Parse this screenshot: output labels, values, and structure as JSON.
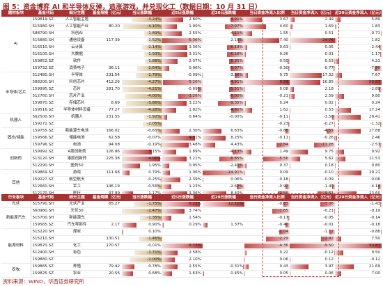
{
  "title": "图 5：资金博弈 AI 和半导体反弹，追涨游戏，并兑现化工（数据日期：10 月 31 日）",
  "footer": "资料来源：WIND，华西证券研究所",
  "headers": {
    "sector": "题材板块",
    "code": "基金代码",
    "sub": "细分主题",
    "size": "基金规模（亿元）",
    "d1": "当日涨跌幅",
    "w1": "近5日涨跌幅",
    "m1": "近20日涨跌幅",
    "flow_pct": "当日资金净流入比例",
    "flow_amt": "当日资金净流入（亿元）",
    "flow20": "近20日资金净流入（亿元）"
  },
  "headers2": {
    "sector": "行业板块",
    "code": "基金代码",
    "sub": "细分主题",
    "size": "基金规模（亿元）",
    "d1": "当日涨跌幅",
    "w1": "近5日涨跌幅",
    "m1": "近20日涨跌幅",
    "flow_pct": "当日资金净流入比例",
    "flow_amt": "当日资金净流入（亿元）",
    "flow20": "近20日资金净流入（亿元）"
  },
  "top_groups": [
    {
      "label": "AI",
      "rows": [
        {
          "code": "159819.SZ",
          "sub": "人工智能主题",
          "size": "",
          "d1": "-3.24%",
          "w1": "2.80%",
          "m1": "-4.91%",
          "fp": "3.67",
          "fa": "2.49",
          "f20": "5.89"
        },
        {
          "code": "515980.SH",
          "sub": "人工智能产业",
          "size": "80.20",
          "d1": "-4.10%",
          "w1": "1.90%",
          "m1": "-7.07%",
          "fp": "4.60",
          "fa": "1.69",
          "f20": "1.83"
        },
        {
          "code": "588790.SH",
          "sub": "科创AI",
          "size": "",
          "d1": "-1.89%",
          "w1": "2.55%",
          "m1": "-4.11%",
          "fp": "1.55",
          "fa": "0.51",
          "f20": "-0.71"
        },
        {
          "code": "515880.SH",
          "sub": "通信设备",
          "size": "117.39",
          "d1": "-1.52%",
          "w1": "-5.36%",
          "m1": "-2.16%",
          "fp": "7.40",
          "fa": "24.74",
          "f20": "1.82"
        },
        {
          "code": "516510.SH",
          "sub": "云计算",
          "size": "",
          "d1": "-2.14%",
          "w1": "3.36%",
          "m1": "-6.13%",
          "fp": "0.63",
          "fa": "0.05",
          "f20": "-2.44"
        },
        {
          "code": "516100.SH",
          "sub": "大数据",
          "size": "",
          "d1": "-1.93%",
          "w1": "3.31%",
          "m1": "-6.18%",
          "fp": "0.26",
          "fa": "0.01",
          "f20": "-1.17"
        },
        {
          "code": "159852.SZ",
          "sub": "软件",
          "size": "",
          "d1": "-1.88%",
          "w1": "2.07%",
          "m1": "-5.35%",
          "fp": "-0.50",
          "fa": "-0.53",
          "f20": "4.21"
        },
        {
          "code": "159732.SZ",
          "sub": "消费电子",
          "size": "36.11",
          "d1": "-2.64%",
          "w1": "0.96%",
          "m1": "-5.07%",
          "fp": "-0.30",
          "fa": "-0.77",
          "f20": "-7.39"
        }
      ]
    },
    {
      "label": "半导体/芯片",
      "rows": [
        {
          "code": "512480.SH",
          "sub": "半导体",
          "size": "231.54",
          "d1": "-2.79%",
          "w1": "-0.09%",
          "m1": "-3.56%",
          "fp": "0.75",
          "fa": "17.32",
          "f20": "7.67"
        },
        {
          "code": "588200.SH",
          "sub": "科创芯片",
          "size": "412.26",
          "d1": "-4.27%",
          "w1": "-5.26%",
          "m1": "-4.91%",
          "fp": "9.59",
          "fa": "16.85",
          "f20": "50.87"
        },
        {
          "code": "159995.SZ",
          "sub": "芯片",
          "size": "281.70",
          "d1": "-4.21%",
          "w1": "-0.69%",
          "m1": "-5.51%",
          "fp": "0.08",
          "fa": "2.18",
          "f20": "-2.89"
        },
        {
          "code": "512760.SH",
          "sub": "芯片产业",
          "size": "",
          "d1": "-4.00%",
          "w1": "-3.26%",
          "m1": "-5.00%",
          "fp": "-0.21",
          "fa": "2.59",
          "f20": "9.80"
        },
        {
          "code": "159870.SZ",
          "sub": "存储芯片",
          "size": "8.69",
          "d1": "-3.86%",
          "w1": "3.22%",
          "m1": "-9.35%",
          "fp": "0.24",
          "fa": "0.02",
          "f20": "0.24"
        },
        {
          "code": "159516.SZ",
          "sub": "半导体材料设备",
          "size": "77.27",
          "d1": "-4.28%",
          "w1": "1.82%",
          "m1": "-4.81%",
          "fp": "1.62",
          "fa": "0.53",
          "f20": "17.24"
        }
      ]
    },
    {
      "label": "机器人",
      "rows": [
        {
          "code": "562500.SH",
          "sub": "机器人",
          "size": "231.55",
          "d1": "-1.92%",
          "w1": "0.64%",
          "m1": "-0.00%",
          "fp": "-0.11",
          "fa": "-1.50",
          "f20": "28.41"
        },
        {
          "code": "159272.SZ",
          "sub": "",
          "size": "",
          "d1": "-2.05%",
          "w1": "",
          "m1": "",
          "fp": "-0.23",
          "fa": "-0.27",
          "f20": "-1.32"
        }
      ]
    },
    {
      "label": "固态/储能",
      "rows": [
        {
          "code": "159755.SZ",
          "sub": "新能源车电池",
          "size": "166.02",
          "d1": "-0.65%",
          "w1": "2.30%",
          "m1": "6.63%",
          "fp": "-0.88",
          "fa": "-4.51",
          "f20": "27.88"
        },
        {
          "code": "159566.SZ",
          "sub": "储能电池",
          "size": "62.58",
          "d1": "-0.07%",
          "w1": "4.31%",
          "m1": "8.25%",
          "fp": "-0.11",
          "fa": "-0.26",
          "f20": "2.46"
        },
        {
          "code": "159796.SZ",
          "sub": "电池",
          "size": "94.08",
          "d1": "-0.19%",
          "w1": "3.48%",
          "m1": "4.43%",
          "fp": "-2.84",
          "fa": "-11.28",
          "f20": "-2.57"
        }
      ]
    },
    {
      "label": "创新药",
      "rows": [
        {
          "code": "159992.SZ",
          "sub": "A股创新药",
          "size": "126.86",
          "d1": "3.15%",
          "w1": "1.89%",
          "m1": "-4.13%",
          "fp": "1.49",
          "fa": "9.75",
          "f20": "9.92"
        },
        {
          "code": "513120.SH",
          "sub": "港股创新药",
          "size": "225.38",
          "d1": "4.06%",
          "w1": "3.21%",
          "m1": "-8.85%",
          "fp": "-5.56",
          "fa": "5.62",
          "f20": "11.53"
        },
        {
          "code": "512290.SH",
          "sub": "医药50",
          "size": "",
          "d1": "1.95%",
          "w1": "0.95%",
          "m1": "-2.41%",
          "fp": "0.37",
          "fa": "0.18",
          "f20": "0.80"
        }
      ]
    },
    {
      "label": "其他",
      "rows": [
        {
          "code": "159869.SZ",
          "sub": "游戏",
          "size": "111.68",
          "d1": "0.79%",
          "w1": "1.06%",
          "m1": "-14.91%",
          "fp": "0.09",
          "fa": "-0.10",
          "f20": "29.21"
        },
        {
          "code": "159227.SZ",
          "sub": "航空航天",
          "size": "",
          "d1": "-0.25%",
          "w1": "2.39%",
          "m1": "0.06%",
          "fp": "-0.18",
          "fa": "-0.09",
          "f20": "-0.06"
        },
        {
          "code": "512660.SH",
          "sub": "军工",
          "size": "146.19",
          "d1": "-0.56%",
          "w1": "1.23%",
          "m1": "-2.67%",
          "fp": "-0.92",
          "fa": "-1.40",
          "f20": "-4.14"
        },
        {
          "code": "512170.SH",
          "sub": "医疗",
          "size": "97.99",
          "d1": "1.17%",
          "w1": "3.36%",
          "m1": "8.40%",
          "fp": "-2.56",
          "fa": "-9.61",
          "f20": "23.60"
        }
      ]
    }
  ],
  "bottom_groups": [
    {
      "label": "光伏",
      "rows": [
        {
          "code": "515790.SH",
          "sub": "光伏产业",
          "size": "85.27",
          "d1": "-1.75%",
          "w1": "6.22%",
          "m1": "12.11%",
          "fp": "-0.63",
          "fa": "-3.06",
          "f20": "-1.43"
        }
      ]
    },
    {
      "label": "新能源汽车",
      "rows": [
        {
          "code": "560980.SH",
          "sub": "光伏30",
          "size": "",
          "d1": "-2.47%",
          "w1": "3.74%",
          "m1": "",
          "fp": "-1.65",
          "fa": "-0.21",
          "f20": "-0.19"
        },
        {
          "code": "515700.SH",
          "sub": "新能源车",
          "size": "",
          "d1": "-1.35%",
          "w1": "1.54%",
          "m1": "",
          "fp": "-0.17",
          "fa": "-0.05",
          "f20": "-0.14"
        },
        {
          "code": "159565.SZ",
          "sub": "汽车零部件",
          "size": "2.17",
          "d1": "0.90%",
          "w1": "0.29%",
          "m1": "1.37%",
          "fp": "-0.40",
          "fa": "-0.01",
          "f20": "-0.18"
        }
      ]
    },
    {
      "label": "能源材料",
      "rows": [
        {
          "code": "515220.SH",
          "sub": "煤炭",
          "size": "",
          "d1": "0.10%",
          "w1": "",
          "m1": "",
          "fp": "-1.04",
          "fa": "-1.12",
          "f20": "-0.88"
        },
        {
          "code": "515210.SH",
          "sub": "",
          "size": "130.51",
          "d1": "-1.46%",
          "w1": "",
          "m1": "",
          "fp": "-2.29",
          "fa": "-2.92",
          "f20": "7.50"
        },
        {
          "code": "159870.SZ",
          "sub": "化工",
          "size": "170.57",
          "d1": "-0.01%",
          "w1": "6.73%",
          "m1": "",
          "fp": "-4.36",
          "fa": "-9.50",
          "f20": "53.87"
        },
        {
          "code": "512400.SH",
          "sub": "有色",
          "size": "",
          "d1": "-1.71%",
          "w1": "2.58%",
          "m1": "",
          "fp": "0.22",
          "fa": "-0.12",
          "f20": "9.50"
        },
        {
          "code": "159880.SZ",
          "sub": "",
          "size": "",
          "d1": "-2.00%",
          "w1": "2.10%",
          "m1": "",
          "fp": "0.06",
          "fa": "0.12",
          "f20": "-0.12"
        }
      ]
    },
    {
      "label": "农牧",
      "rows": [
        {
          "code": "159865.SZ",
          "sub": "养殖",
          "size": "79.42",
          "d1": "0.78%",
          "w1": "2.55%",
          "m1": "-0.31%",
          "fp": "0.43",
          "fa": "3.97",
          "f20": "21.69"
        },
        {
          "code": "159825.SZ",
          "sub": "农业",
          "size": "20.56",
          "d1": "0.68%",
          "w1": "1.63%",
          "m1": "0.45%",
          "fp": "0.05",
          "fa": "0.06",
          "f20": "7.00"
        }
      ]
    }
  ]
}
